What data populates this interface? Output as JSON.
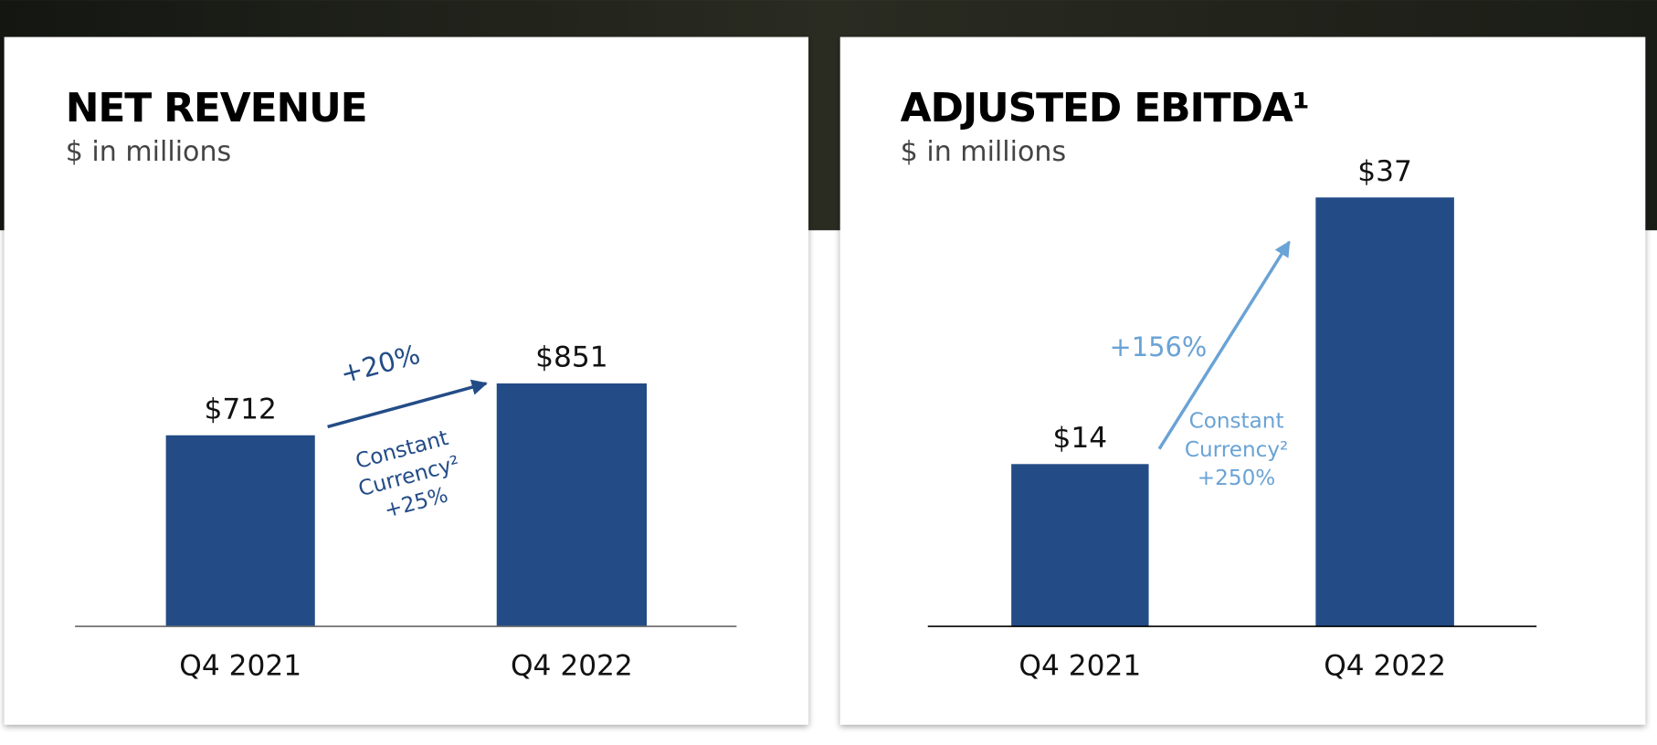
{
  "chart_data": [
    {
      "type": "bar",
      "title": "NET REVENUE",
      "subtitle": "$ in millions",
      "categories": [
        "Q4 2021",
        "Q4 2022"
      ],
      "values": [
        712,
        851
      ],
      "value_labels": [
        "$712",
        "$851"
      ],
      "color": "#234c87",
      "ylim": [
        200,
        1100
      ],
      "annotation": {
        "change": "+20%",
        "note": [
          "Constant",
          "Currency²",
          "+25%"
        ],
        "color": "#234c87"
      }
    },
    {
      "type": "bar",
      "title": "ADJUSTED EBITDA¹",
      "subtitle": "$ in millions",
      "categories": [
        "Q4 2021",
        "Q4 2022"
      ],
      "values": [
        14,
        37
      ],
      "value_labels": [
        "$14",
        "$37"
      ],
      "color": "#234c87",
      "ylim": [
        0,
        40
      ],
      "annotation": {
        "change": "+156%",
        "note": [
          "Constant",
          "Currency²",
          "+250%"
        ],
        "color": "#6aa3d5"
      }
    }
  ]
}
